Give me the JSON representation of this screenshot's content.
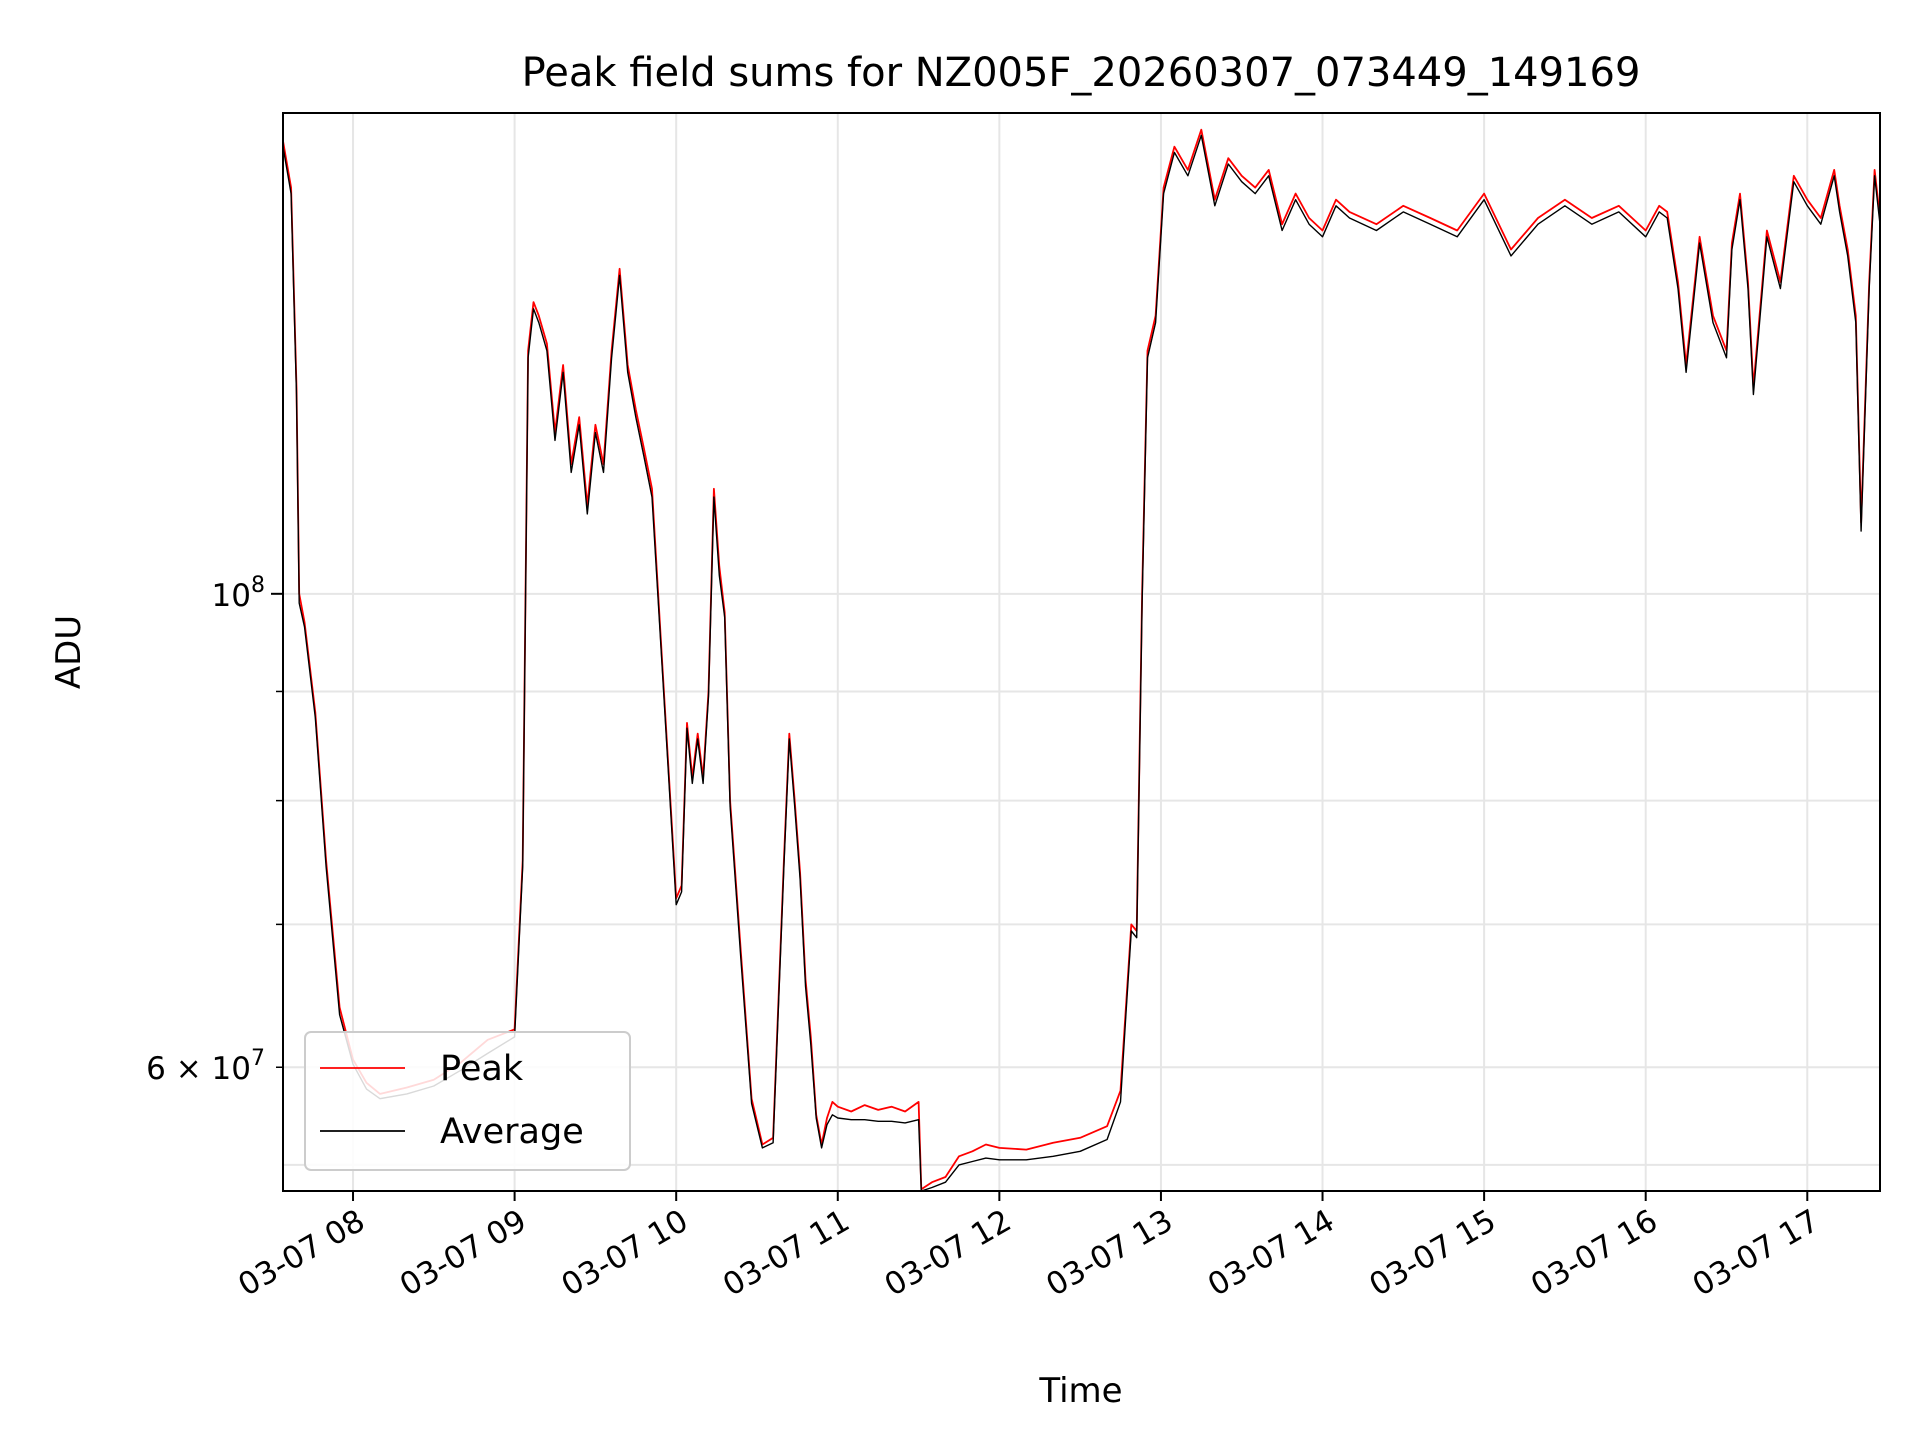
{
  "chart_data": {
    "type": "line",
    "title": "Peak field sums for NZ005F_20260307_073449_149169",
    "xlabel": "Time",
    "ylabel": "ADU",
    "yscale": "log",
    "xlim": [
      "03-07 07:34",
      "03-07 17:27"
    ],
    "ylim": [
      52500000,
      168000000
    ],
    "grid": true,
    "legend_position": "lower-left",
    "x_ticks": [
      "03-07 08",
      "03-07 09",
      "03-07 10",
      "03-07 11",
      "03-07 12",
      "03-07 13",
      "03-07 14",
      "03-07 15",
      "03-07 16",
      "03-07 17"
    ],
    "x_tick_times": [
      "03-07 08:00",
      "03-07 09:00",
      "03-07 10:00",
      "03-07 11:00",
      "03-07 12:00",
      "03-07 13:00",
      "03-07 14:00",
      "03-07 15:00",
      "03-07 16:00",
      "03-07 17:00"
    ],
    "y_major_ticks": [
      {
        "value": 100000000,
        "base": "10",
        "exp": "8"
      }
    ],
    "y_minor_ticks": [
      {
        "value": 60000000,
        "mantissa": "6",
        "base": "10",
        "exp": "7"
      },
      {
        "value": 70000000
      },
      {
        "value": 80000000
      },
      {
        "value": 90000000
      }
    ],
    "y_extra_grid": [
      54000000
    ],
    "series": [
      {
        "name": "Peak",
        "color": "#ff0000"
      },
      {
        "name": "Average",
        "color": "#000000"
      }
    ],
    "x": [
      "03-07 07:34",
      "03-07 07:37",
      "03-07 07:39",
      "03-07 07:40",
      "03-07 07:42",
      "03-07 07:46",
      "03-07 07:50",
      "03-07 07:55",
      "03-07 08:00",
      "03-07 08:05",
      "03-07 08:10",
      "03-07 08:20",
      "03-07 08:30",
      "03-07 08:40",
      "03-07 08:50",
      "03-07 09:00",
      "03-07 09:03",
      "03-07 09:05",
      "03-07 09:07",
      "03-07 09:09",
      "03-07 09:12",
      "03-07 09:15",
      "03-07 09:18",
      "03-07 09:21",
      "03-07 09:24",
      "03-07 09:27",
      "03-07 09:30",
      "03-07 09:33",
      "03-07 09:36",
      "03-07 09:39",
      "03-07 09:42",
      "03-07 09:45",
      "03-07 09:48",
      "03-07 09:51",
      "03-07 09:55",
      "03-07 10:00",
      "03-07 10:02",
      "03-07 10:04",
      "03-07 10:06",
      "03-07 10:08",
      "03-07 10:10",
      "03-07 10:12",
      "03-07 10:14",
      "03-07 10:16",
      "03-07 10:18",
      "03-07 10:20",
      "03-07 10:24",
      "03-07 10:28",
      "03-07 10:32",
      "03-07 10:36",
      "03-07 10:40",
      "03-07 10:42",
      "03-07 10:44",
      "03-07 10:46",
      "03-07 10:48",
      "03-07 10:50",
      "03-07 10:52",
      "03-07 10:54",
      "03-07 10:56",
      "03-07 10:58",
      "03-07 11:00",
      "03-07 11:05",
      "03-07 11:10",
      "03-07 11:15",
      "03-07 11:20",
      "03-07 11:25",
      "03-07 11:30",
      "03-07 11:31",
      "03-07 11:35",
      "03-07 11:40",
      "03-07 11:45",
      "03-07 11:50",
      "03-07 11:55",
      "03-07 12:00",
      "03-07 12:10",
      "03-07 12:20",
      "03-07 12:30",
      "03-07 12:40",
      "03-07 12:45",
      "03-07 12:47",
      "03-07 12:49",
      "03-07 12:51",
      "03-07 12:53",
      "03-07 12:55",
      "03-07 12:58",
      "03-07 13:01",
      "03-07 13:05",
      "03-07 13:10",
      "03-07 13:15",
      "03-07 13:20",
      "03-07 13:25",
      "03-07 13:30",
      "03-07 13:35",
      "03-07 13:40",
      "03-07 13:45",
      "03-07 13:50",
      "03-07 13:55",
      "03-07 14:00",
      "03-07 14:05",
      "03-07 14:10",
      "03-07 14:20",
      "03-07 14:30",
      "03-07 14:40",
      "03-07 14:50",
      "03-07 15:00",
      "03-07 15:10",
      "03-07 15:20",
      "03-07 15:30",
      "03-07 15:40",
      "03-07 15:50",
      "03-07 16:00",
      "03-07 16:05",
      "03-07 16:08",
      "03-07 16:12",
      "03-07 16:15",
      "03-07 16:20",
      "03-07 16:25",
      "03-07 16:30",
      "03-07 16:32",
      "03-07 16:35",
      "03-07 16:38",
      "03-07 16:40",
      "03-07 16:45",
      "03-07 16:50",
      "03-07 16:55",
      "03-07 17:00",
      "03-07 17:05",
      "03-07 17:10",
      "03-07 17:12",
      "03-07 17:15",
      "03-07 17:18",
      "03-07 17:20",
      "03-07 17:23",
      "03-07 17:25",
      "03-07 17:27"
    ],
    "peak": [
      163000000,
      155000000,
      125000000,
      100000000,
      97000000,
      88000000,
      75000000,
      64000000,
      60500000,
      59000000,
      58300000,
      58700000,
      59200000,
      60300000,
      61800000,
      62500000,
      75000000,
      130000000,
      137000000,
      135000000,
      131000000,
      119000000,
      128000000,
      115000000,
      121000000,
      110000000,
      120000000,
      115000000,
      130000000,
      142000000,
      128000000,
      122000000,
      117000000,
      112000000,
      92000000,
      72000000,
      73000000,
      87000000,
      82000000,
      86000000,
      82000000,
      90000000,
      112000000,
      103000000,
      98000000,
      80000000,
      68000000,
      58000000,
      55200000,
      55600000,
      75000000,
      86000000,
      80000000,
      74000000,
      66000000,
      62000000,
      57000000,
      55200000,
      56800000,
      57800000,
      57500000,
      57200000,
      57600000,
      57300000,
      57500000,
      57200000,
      57800000,
      52600000,
      53000000,
      53300000,
      54500000,
      54800000,
      55200000,
      55000000,
      54900000,
      55300000,
      55600000,
      56300000,
      58500000,
      64000000,
      70000000,
      69500000,
      100000000,
      130000000,
      135000000,
      155000000,
      162000000,
      158000000,
      165000000,
      153000000,
      160000000,
      157000000,
      155000000,
      158000000,
      149000000,
      154000000,
      150000000,
      148000000,
      153000000,
      151000000,
      149000000,
      152000000,
      150000000,
      148000000,
      154000000,
      145000000,
      150000000,
      153000000,
      150000000,
      152000000,
      148000000,
      152000000,
      151000000,
      140000000,
      128000000,
      147000000,
      135000000,
      130000000,
      146000000,
      154000000,
      140000000,
      125000000,
      148000000,
      140000000,
      157000000,
      153000000,
      150000000,
      158000000,
      152000000,
      145000000,
      135000000,
      108000000,
      140000000,
      158000000,
      150000000
    ],
    "average": [
      162000000,
      154000000,
      124000000,
      99000000,
      96500000,
      87500000,
      74500000,
      63500000,
      60200000,
      58600000,
      58000000,
      58300000,
      58800000,
      59800000,
      60900000,
      62000000,
      74500000,
      129000000,
      136000000,
      134000000,
      130000000,
      118000000,
      127000000,
      114000000,
      120000000,
      109000000,
      119000000,
      114000000,
      129000000,
      141000000,
      127000000,
      121000000,
      116000000,
      111000000,
      91500000,
      71500000,
      72500000,
      86500000,
      81500000,
      85500000,
      81500000,
      89500000,
      111000000,
      102000000,
      97500000,
      79500000,
      67500000,
      57700000,
      55000000,
      55300000,
      74500000,
      85500000,
      79500000,
      73500000,
      65500000,
      61500000,
      56800000,
      55000000,
      56400000,
      57000000,
      56800000,
      56700000,
      56700000,
      56600000,
      56600000,
      56500000,
      56700000,
      52500000,
      52700000,
      53000000,
      54000000,
      54200000,
      54400000,
      54300000,
      54300000,
      54500000,
      54800000,
      55500000,
      57800000,
      63500000,
      69500000,
      69000000,
      99000000,
      129000000,
      134000000,
      154000000,
      161000000,
      157000000,
      164000000,
      152000000,
      159000000,
      156000000,
      154000000,
      157000000,
      148000000,
      153000000,
      149000000,
      147000000,
      152000000,
      150000000,
      148000000,
      151000000,
      149000000,
      147000000,
      153000000,
      144000000,
      149000000,
      152000000,
      149000000,
      151000000,
      147000000,
      151000000,
      150000000,
      139000000,
      127000000,
      146000000,
      134000000,
      129000000,
      145000000,
      153000000,
      139000000,
      124000000,
      147000000,
      139000000,
      156000000,
      152000000,
      149000000,
      157000000,
      151000000,
      144000000,
      134000000,
      107000000,
      139000000,
      157000000,
      149000000
    ]
  }
}
